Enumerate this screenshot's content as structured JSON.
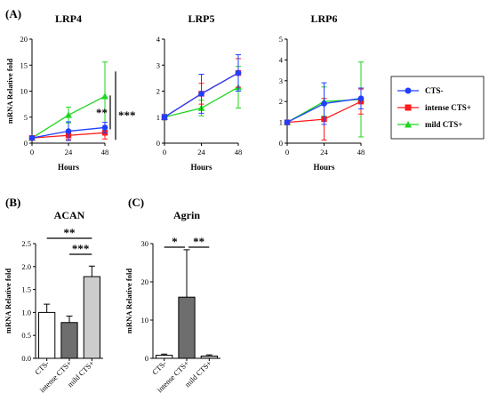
{
  "panels": {
    "A": "(A)",
    "B": "(B)",
    "C": "(C)"
  },
  "legend": {
    "items": [
      {
        "label": "CTS-",
        "color": "#1f3fff",
        "marker": "circle"
      },
      {
        "label": "intense CTS+",
        "color": "#ff1a1a",
        "marker": "square"
      },
      {
        "label": "mild CTS+",
        "color": "#1fd61f",
        "marker": "triangle"
      }
    ]
  },
  "chart_data": [
    {
      "id": "lrp4",
      "type": "line",
      "title": "LRP4",
      "xlabel": "Hours",
      "ylabel": "mRNA Relative fold",
      "x": [
        0,
        24,
        48
      ],
      "xlim": [
        0,
        48
      ],
      "ylim": [
        0,
        20
      ],
      "yticks": [
        0,
        5,
        10,
        15,
        20
      ],
      "series": [
        {
          "name": "CTS-",
          "values": [
            1.0,
            2.3,
            3.0
          ],
          "err": [
            0.1,
            1.8,
            1.0
          ]
        },
        {
          "name": "intense CTS+",
          "values": [
            1.0,
            1.5,
            2.0
          ],
          "err": [
            0.1,
            0.8,
            1.2
          ]
        },
        {
          "name": "mild CTS+",
          "values": [
            1.0,
            5.4,
            9.0
          ],
          "err": [
            0.1,
            1.5,
            6.6
          ]
        }
      ],
      "annotations": [
        {
          "text": "**",
          "between": [
            "CTS-",
            "mild CTS+"
          ],
          "at_x": 48
        },
        {
          "text": "***",
          "between": [
            "intense CTS+",
            "mild CTS+"
          ],
          "at_x": 48
        }
      ]
    },
    {
      "id": "lrp5",
      "type": "line",
      "title": "LRP5",
      "xlabel": "Hours",
      "ylabel": "",
      "x": [
        0,
        24,
        48
      ],
      "xlim": [
        0,
        48
      ],
      "ylim": [
        0,
        4
      ],
      "yticks": [
        0,
        1,
        2,
        3,
        4
      ],
      "series": [
        {
          "name": "CTS-",
          "values": [
            1.0,
            1.9,
            2.7
          ],
          "err": [
            0.1,
            0.75,
            0.7
          ]
        },
        {
          "name": "intense CTS+",
          "values": [
            1.0,
            1.9,
            2.7
          ],
          "err": [
            0.1,
            0.4,
            0.55
          ]
        },
        {
          "name": "mild CTS+",
          "values": [
            1.0,
            1.35,
            2.15
          ],
          "err": [
            0.1,
            0.3,
            0.8
          ]
        }
      ]
    },
    {
      "id": "lrp6",
      "type": "line",
      "title": "LRP6",
      "xlabel": "Hours",
      "ylabel": "",
      "x": [
        0,
        24,
        48
      ],
      "xlim": [
        0,
        48
      ],
      "ylim": [
        0,
        5
      ],
      "yticks": [
        0,
        1,
        2,
        3,
        4,
        5
      ],
      "series": [
        {
          "name": "CTS-",
          "values": [
            1.0,
            1.9,
            2.15
          ],
          "err": [
            0.1,
            1.0,
            0.5
          ]
        },
        {
          "name": "intense CTS+",
          "values": [
            1.0,
            1.15,
            2.0
          ],
          "err": [
            0.1,
            1.0,
            0.6
          ]
        },
        {
          "name": "mild CTS+",
          "values": [
            1.0,
            2.0,
            2.1
          ],
          "err": [
            0.1,
            0.7,
            1.8
          ]
        }
      ]
    },
    {
      "id": "acan",
      "type": "bar",
      "title": "ACAN",
      "xlabel": "",
      "ylabel": "mRNA Relative fold",
      "categories": [
        "CTS-",
        "intense CTS+",
        "mild CTS+"
      ],
      "values": [
        1.0,
        0.78,
        1.78
      ],
      "err": [
        0.18,
        0.14,
        0.23
      ],
      "colors": [
        "#ffffff",
        "#6e6e6e",
        "#cccccc"
      ],
      "ylim": [
        0,
        2.5
      ],
      "yticks": [
        0.0,
        0.5,
        1.0,
        1.5,
        2.0,
        2.5
      ],
      "ytick_labels": [
        "0.0",
        "0.5",
        "1.0",
        "1.5",
        "2.0",
        "2.5"
      ],
      "annotations": [
        {
          "text": "**",
          "from": "CTS-",
          "to": "mild CTS+"
        },
        {
          "text": "***",
          "from": "intense CTS+",
          "to": "mild CTS+"
        }
      ]
    },
    {
      "id": "agrin",
      "type": "bar",
      "title": "Agrin",
      "xlabel": "",
      "ylabel": "mRNA Relative fold",
      "categories": [
        "CTS-",
        "intense CTS+",
        "mild CTS+"
      ],
      "values": [
        0.8,
        16.0,
        0.6
      ],
      "err": [
        0.3,
        12.4,
        0.3
      ],
      "colors": [
        "#ffffff",
        "#6e6e6e",
        "#cccccc"
      ],
      "ylim": [
        0,
        30
      ],
      "yticks": [
        0,
        10,
        20,
        30
      ],
      "ytick_labels": [
        "0",
        "10",
        "20",
        "30"
      ],
      "annotations": [
        {
          "text": "*",
          "from": "CTS-",
          "to": "intense CTS+"
        },
        {
          "text": "**",
          "from": "intense CTS+",
          "to": "mild CTS+"
        }
      ]
    }
  ]
}
